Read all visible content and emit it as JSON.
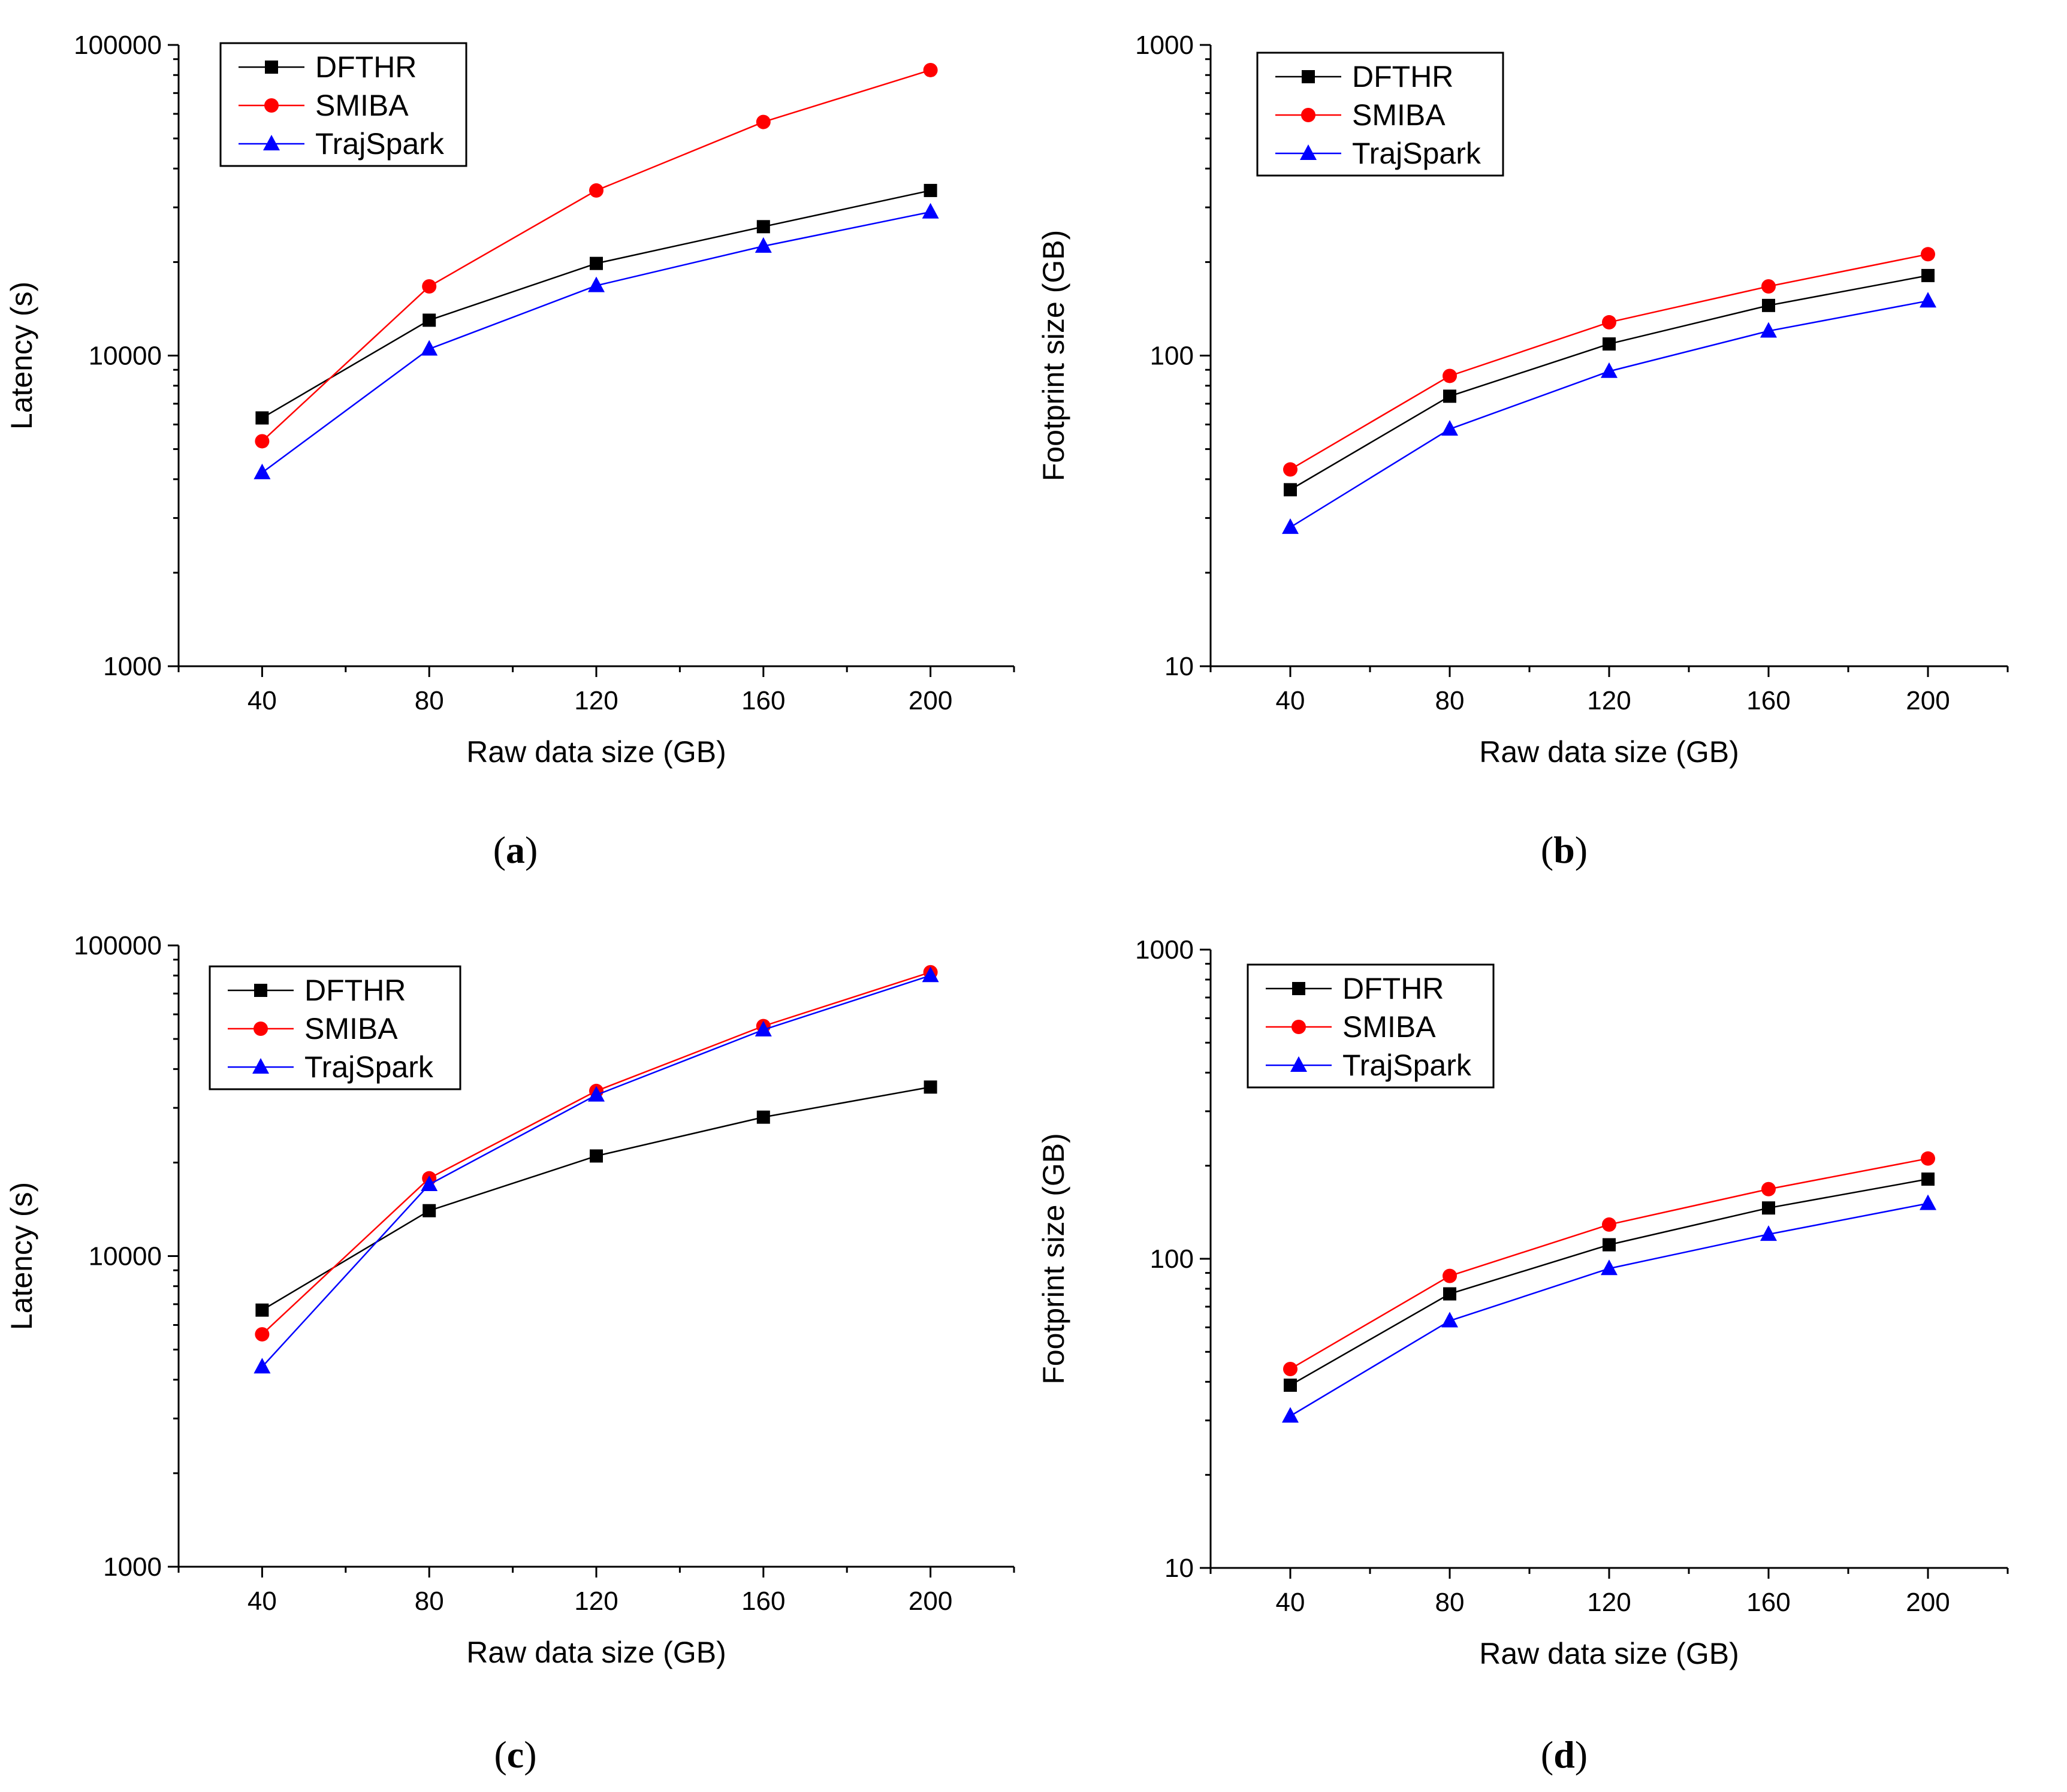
{
  "colors": {
    "DFTHR": "#000000",
    "SMIBA": "#ff0000",
    "TrajSpark": "#0000ff"
  },
  "chart_data": [
    {
      "panel": "a",
      "type": "line",
      "xlabel": "Raw data size (GB)",
      "ylabel": "Latency (s)",
      "yscale": "log",
      "ylim": [
        1000,
        100000
      ],
      "yticks": [
        "1000",
        "10000",
        "100000"
      ],
      "x": [
        40,
        80,
        120,
        160,
        200
      ],
      "xticks": [
        "40",
        "80",
        "120",
        "160",
        "200"
      ],
      "xlim": [
        20,
        220
      ],
      "series": [
        {
          "name": "DFTHR",
          "marker": "square",
          "values": [
            6300,
            13000,
            19800,
            26000,
            34000
          ]
        },
        {
          "name": "SMIBA",
          "marker": "circle",
          "values": [
            5300,
            16700,
            34000,
            56500,
            83000
          ]
        },
        {
          "name": "TrajSpark",
          "marker": "triangle",
          "values": [
            4200,
            10500,
            16800,
            22500,
            29000
          ]
        }
      ]
    },
    {
      "panel": "b",
      "type": "line",
      "xlabel": "Raw data size (GB)",
      "ylabel": "Footprint size (GB)",
      "yscale": "log",
      "ylim": [
        10,
        1000
      ],
      "yticks": [
        "10",
        "100",
        "1000"
      ],
      "x": [
        40,
        80,
        120,
        160,
        200
      ],
      "xticks": [
        "40",
        "80",
        "120",
        "160",
        "200"
      ],
      "xlim": [
        20,
        220
      ],
      "series": [
        {
          "name": "DFTHR",
          "marker": "square",
          "values": [
            37,
            74,
            109,
            145,
            181
          ]
        },
        {
          "name": "SMIBA",
          "marker": "circle",
          "values": [
            43,
            86,
            128,
            167,
            212
          ]
        },
        {
          "name": "TrajSpark",
          "marker": "triangle",
          "values": [
            28,
            58,
            89,
            120,
            150
          ]
        }
      ]
    },
    {
      "panel": "c",
      "type": "line",
      "xlabel": "Raw data size (GB)",
      "ylabel": "Latency (s)",
      "yscale": "log",
      "ylim": [
        1000,
        100000
      ],
      "yticks": [
        "1000",
        "10000",
        "100000"
      ],
      "x": [
        40,
        80,
        120,
        160,
        200
      ],
      "xticks": [
        "40",
        "80",
        "120",
        "160",
        "200"
      ],
      "xlim": [
        20,
        220
      ],
      "series": [
        {
          "name": "DFTHR",
          "marker": "square",
          "values": [
            6700,
            14000,
            21000,
            28000,
            35000
          ]
        },
        {
          "name": "SMIBA",
          "marker": "circle",
          "values": [
            5600,
            17800,
            34000,
            55000,
            82000
          ]
        },
        {
          "name": "TrajSpark",
          "marker": "triangle",
          "values": [
            4400,
            17000,
            33000,
            53500,
            80000
          ]
        }
      ]
    },
    {
      "panel": "d",
      "type": "line",
      "xlabel": "Raw data size (GB)",
      "ylabel": "Footprint size (GB)",
      "yscale": "log",
      "ylim": [
        10,
        1000
      ],
      "yticks": [
        "10",
        "100",
        "1000"
      ],
      "x": [
        40,
        80,
        120,
        160,
        200
      ],
      "xticks": [
        "40",
        "80",
        "120",
        "160",
        "200"
      ],
      "xlim": [
        20,
        220
      ],
      "series": [
        {
          "name": "DFTHR",
          "marker": "square",
          "values": [
            39,
            77,
            111,
            146,
            181
          ]
        },
        {
          "name": "SMIBA",
          "marker": "circle",
          "values": [
            44,
            88,
            129,
            168,
            211
          ]
        },
        {
          "name": "TrajSpark",
          "marker": "triangle",
          "values": [
            31,
            63,
            93,
            120,
            151
          ]
        }
      ]
    }
  ]
}
